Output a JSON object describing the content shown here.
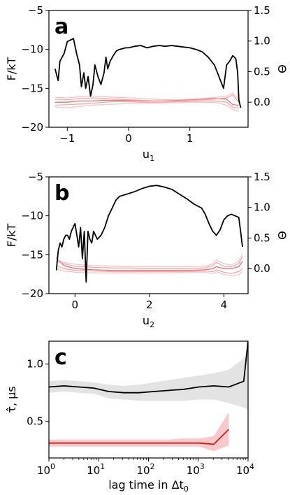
{
  "chart_data": [
    {
      "type": "line",
      "panel_label": "a",
      "xlabel": "u",
      "xlabel_sub": "1",
      "ylabel": "F/kT",
      "ylabel_right": "Θ",
      "xlim": [
        -1.3,
        1.95
      ],
      "ylim": [
        -20,
        -5
      ],
      "ylim_right": [
        -0.41,
        1.5
      ],
      "xticks": [
        -1,
        0,
        1
      ],
      "yticks": [
        -20,
        -15,
        -10,
        -5
      ],
      "yticks_right": [
        0.0,
        0.5,
        1.0,
        1.5
      ],
      "tick_labels_x": [
        "−1",
        "0",
        "1"
      ],
      "tick_labels_y": [
        "−20",
        "−15",
        "−10",
        "−5"
      ],
      "tick_labels_y_right": [
        "0.0",
        "0.5",
        "1.0",
        "1.5"
      ],
      "series": [
        {
          "axis": "left",
          "color": "#000000",
          "x": [
            -1.2,
            -1.15,
            -1.12,
            -1.05,
            -1.0,
            -0.95,
            -0.9,
            -0.85,
            -0.8,
            -0.77,
            -0.73,
            -0.7,
            -0.66,
            -0.62,
            -0.58,
            -0.55,
            -0.5,
            -0.45,
            -0.4,
            -0.37,
            -0.34,
            -0.3,
            -0.25,
            -0.2,
            -0.15,
            -0.1,
            -0.05,
            0.0,
            0.1,
            0.2,
            0.3,
            0.4,
            0.5,
            0.6,
            0.7,
            0.8,
            0.9,
            1.0,
            1.1,
            1.2,
            1.3,
            1.4,
            1.45,
            1.5,
            1.55,
            1.6,
            1.65,
            1.7,
            1.75,
            1.78,
            1.8,
            1.83
          ],
          "y": [
            -12.5,
            -14.0,
            -11.5,
            -10.5,
            -9.0,
            -8.8,
            -8.6,
            -10.5,
            -12.0,
            -14.8,
            -13.0,
            -15.0,
            -13.5,
            -16.0,
            -14.5,
            -12.0,
            -13.5,
            -14.5,
            -13.0,
            -11.0,
            -12.5,
            -11.5,
            -10.8,
            -10.2,
            -10.0,
            -9.9,
            -9.8,
            -9.8,
            -9.6,
            -9.5,
            -9.8,
            -9.6,
            -9.5,
            -9.6,
            -9.5,
            -9.6,
            -9.7,
            -9.8,
            -10.0,
            -10.3,
            -11.0,
            -12.0,
            -13.0,
            -14.0,
            -15.0,
            -12.0,
            -11.5,
            -10.8,
            -11.2,
            -13.0,
            -16.5,
            -17.5
          ]
        },
        {
          "axis": "right",
          "color": "#e0575a",
          "x": [
            -1.2,
            -1.0,
            -0.8,
            -0.6,
            -0.4,
            -0.2,
            0.0,
            0.2,
            0.4,
            0.6,
            0.8,
            1.0,
            1.2,
            1.4,
            1.6,
            1.7,
            1.8
          ],
          "y": [
            0.0,
            0.0,
            0.02,
            0.02,
            0.03,
            0.03,
            0.03,
            0.02,
            0.02,
            0.02,
            0.03,
            0.04,
            0.05,
            0.06,
            0.05,
            -0.04,
            -0.05
          ]
        },
        {
          "axis": "right",
          "color": "#f29a9c",
          "x": [
            -1.2,
            -1.0,
            -0.8,
            -0.6,
            -0.4,
            -0.2,
            0.0,
            0.2,
            0.4,
            0.6,
            0.8,
            1.0,
            1.2,
            1.4,
            1.6,
            1.7,
            1.8
          ],
          "y": [
            0.05,
            0.04,
            0.06,
            0.07,
            0.06,
            0.05,
            0.04,
            0.03,
            0.02,
            0.02,
            0.02,
            0.03,
            0.04,
            0.05,
            0.07,
            0.12,
            0.0
          ]
        },
        {
          "axis": "right",
          "color": "#f29a9c",
          "x": [
            -1.2,
            -1.0,
            -0.8,
            -0.6,
            -0.4,
            -0.2,
            0.0,
            0.2,
            0.4,
            0.6,
            0.8,
            1.0,
            1.2,
            1.4,
            1.6,
            1.7,
            1.8
          ],
          "y": [
            -0.05,
            -0.04,
            -0.03,
            -0.02,
            0.0,
            0.01,
            0.01,
            0.0,
            0.0,
            0.0,
            0.01,
            0.01,
            0.02,
            0.02,
            0.0,
            -0.08,
            -0.1
          ]
        },
        {
          "axis": "right",
          "color": "#f7bcbd",
          "x": [
            -1.2,
            -1.0,
            -0.8,
            -0.6,
            -0.4,
            -0.2,
            0.0,
            0.2,
            0.4,
            0.6,
            0.8,
            1.0,
            1.2,
            1.4,
            1.6,
            1.7,
            1.8
          ],
          "y": [
            0.08,
            0.07,
            0.09,
            0.1,
            0.09,
            0.08,
            0.07,
            0.06,
            0.05,
            0.04,
            0.04,
            0.05,
            0.06,
            0.08,
            0.1,
            0.15,
            0.05
          ]
        },
        {
          "axis": "right",
          "color": "#f7bcbd",
          "x": [
            -1.2,
            -1.0,
            -0.8,
            -0.6,
            -0.4,
            -0.2,
            0.0,
            0.2,
            0.4,
            0.6,
            0.8,
            1.0,
            1.2,
            1.4,
            1.6,
            1.7,
            1.8
          ],
          "y": [
            -0.08,
            -0.09,
            -0.07,
            -0.05,
            -0.04,
            -0.03,
            -0.02,
            -0.02,
            -0.02,
            -0.01,
            -0.01,
            0.0,
            0.0,
            0.0,
            -0.05,
            -0.12,
            -0.15
          ]
        }
      ]
    },
    {
      "type": "line",
      "panel_label": "b",
      "xlabel": "u",
      "xlabel_sub": "2",
      "ylabel": "F/kT",
      "ylabel_right": "Θ",
      "xlim": [
        -0.7,
        4.65
      ],
      "ylim": [
        -20,
        -5
      ],
      "ylim_right": [
        -0.41,
        1.5
      ],
      "xticks": [
        0,
        2,
        4
      ],
      "yticks": [
        -20,
        -15,
        -10,
        -5
      ],
      "yticks_right": [
        0.0,
        0.5,
        1.0,
        1.5
      ],
      "tick_labels_x": [
        "0",
        "2",
        "4"
      ],
      "tick_labels_y": [
        "−20",
        "−15",
        "−10",
        "−5"
      ],
      "tick_labels_y_right": [
        "0.0",
        "0.5",
        "1.0",
        "1.5"
      ],
      "series": [
        {
          "axis": "left",
          "color": "#000000",
          "x": [
            -0.5,
            -0.45,
            -0.4,
            -0.35,
            -0.3,
            -0.25,
            -0.2,
            -0.15,
            -0.1,
            -0.05,
            0.0,
            0.05,
            0.1,
            0.15,
            0.2,
            0.25,
            0.3,
            0.35,
            0.4,
            0.45,
            0.5,
            0.6,
            0.7,
            0.8,
            0.9,
            1.0,
            1.1,
            1.2,
            1.4,
            1.6,
            1.8,
            2.0,
            2.2,
            2.4,
            2.6,
            2.8,
            3.0,
            3.2,
            3.4,
            3.5,
            3.6,
            3.7,
            3.8,
            3.9,
            4.0,
            4.1,
            4.2,
            4.3,
            4.4,
            4.45,
            4.5
          ],
          "y": [
            -17.0,
            -14.5,
            -13.5,
            -14.0,
            -13.0,
            -12.5,
            -12.5,
            -13.0,
            -12.0,
            -11.5,
            -11.0,
            -12.5,
            -14.0,
            -11.5,
            -15.5,
            -12.0,
            -18.5,
            -12.0,
            -13.0,
            -13.5,
            -12.0,
            -13.0,
            -12.5,
            -11.5,
            -10.0,
            -9.0,
            -8.0,
            -7.5,
            -7.2,
            -6.9,
            -6.5,
            -6.2,
            -6.1,
            -6.3,
            -6.6,
            -7.2,
            -7.8,
            -8.5,
            -9.0,
            -9.8,
            -11.0,
            -12.0,
            -12.5,
            -11.8,
            -10.5,
            -10.0,
            -9.8,
            -10.0,
            -10.2,
            -12.0,
            -14.0
          ]
        },
        {
          "axis": "right",
          "color": "#e0575a",
          "x": [
            -0.5,
            -0.3,
            0.0,
            0.5,
            1.0,
            1.5,
            2.0,
            2.5,
            3.0,
            3.5,
            3.7,
            3.8,
            4.0,
            4.2,
            4.4,
            4.5
          ],
          "y": [
            0.18,
            0.05,
            0.0,
            -0.02,
            -0.03,
            -0.03,
            -0.03,
            -0.03,
            -0.03,
            -0.02,
            0.0,
            0.03,
            0.0,
            0.0,
            0.03,
            0.12
          ]
        },
        {
          "axis": "right",
          "color": "#f29a9c",
          "x": [
            -0.5,
            -0.3,
            0.0,
            0.5,
            1.0,
            1.5,
            2.0,
            2.5,
            3.0,
            3.5,
            3.7,
            3.8,
            4.0,
            4.2,
            4.4,
            4.5
          ],
          "y": [
            0.12,
            0.08,
            0.04,
            0.02,
            0.01,
            0.01,
            0.0,
            0.0,
            0.0,
            0.01,
            0.05,
            0.1,
            0.04,
            0.03,
            0.08,
            0.2
          ]
        },
        {
          "axis": "right",
          "color": "#f29a9c",
          "x": [
            -0.5,
            -0.3,
            0.0,
            0.5,
            1.0,
            1.5,
            2.0,
            2.5,
            3.0,
            3.5,
            3.7,
            3.8,
            4.0,
            4.2,
            4.4,
            4.5
          ],
          "y": [
            0.05,
            0.0,
            -0.03,
            -0.04,
            -0.05,
            -0.05,
            -0.05,
            -0.05,
            -0.05,
            -0.04,
            -0.05,
            -0.02,
            -0.06,
            -0.08,
            -0.05,
            0.0
          ]
        },
        {
          "axis": "right",
          "color": "#f7bcbd",
          "x": [
            -0.5,
            -0.3,
            0.0,
            0.5,
            1.0,
            1.5,
            2.0,
            2.5,
            3.0,
            3.5,
            3.7,
            3.8,
            4.0,
            4.2,
            4.4,
            4.5
          ],
          "y": [
            0.15,
            0.1,
            0.07,
            0.05,
            0.04,
            0.03,
            0.03,
            0.03,
            0.03,
            0.04,
            0.08,
            0.14,
            0.08,
            0.06,
            0.12,
            0.25
          ]
        },
        {
          "axis": "right",
          "color": "#f7bcbd",
          "x": [
            -0.5,
            -0.3,
            0.0,
            0.5,
            1.0,
            1.5,
            2.0,
            2.5,
            3.0,
            3.5,
            3.7,
            3.8,
            4.0,
            4.2,
            4.4,
            4.5
          ],
          "y": [
            0.0,
            -0.04,
            -0.06,
            -0.07,
            -0.07,
            -0.07,
            -0.07,
            -0.07,
            -0.06,
            -0.06,
            -0.08,
            -0.05,
            -0.1,
            -0.12,
            -0.1,
            -0.05
          ]
        }
      ]
    },
    {
      "type": "line",
      "panel_label": "c",
      "xlabel": "lag time in Δt",
      "xlabel_sub": "0",
      "ylabel": "τ̂, μs",
      "xscale": "log",
      "xlim": [
        1,
        10000
      ],
      "ylim": [
        0.18,
        1.2
      ],
      "xticks": [
        1,
        10,
        100,
        1000,
        10000
      ],
      "xtick_base": "10",
      "xtick_exponents": [
        "0",
        "1",
        "2",
        "3",
        "4"
      ],
      "yticks": [
        0.5,
        1.0
      ],
      "tick_labels_y": [
        "0.5",
        "1.0"
      ],
      "series": [
        {
          "color": "#000000",
          "band_color": "#d9d9d9",
          "x": [
            1,
            2,
            4,
            8,
            16,
            32,
            64,
            128,
            256,
            512,
            1024,
            2048,
            4096,
            8192,
            10000
          ],
          "y": [
            0.8,
            0.81,
            0.8,
            0.79,
            0.76,
            0.75,
            0.75,
            0.76,
            0.77,
            0.78,
            0.8,
            0.81,
            0.8,
            0.85,
            1.2
          ],
          "upper": [
            0.85,
            0.86,
            0.85,
            0.84,
            0.82,
            0.81,
            0.82,
            0.84,
            0.86,
            0.88,
            0.9,
            0.92,
            0.95,
            1.05,
            1.15
          ],
          "lower": [
            0.75,
            0.76,
            0.75,
            0.74,
            0.7,
            0.69,
            0.68,
            0.68,
            0.68,
            0.68,
            0.69,
            0.69,
            0.66,
            0.62,
            0.6
          ]
        },
        {
          "color": "#cc1f1f",
          "band_color": "#f7b6b6",
          "x": [
            1,
            2,
            4,
            8,
            16,
            32,
            64,
            128,
            256,
            512,
            1024,
            2048,
            4096
          ],
          "y": [
            0.31,
            0.31,
            0.31,
            0.31,
            0.31,
            0.31,
            0.31,
            0.31,
            0.31,
            0.31,
            0.31,
            0.3,
            0.43
          ],
          "upper": [
            0.34,
            0.34,
            0.34,
            0.34,
            0.34,
            0.34,
            0.34,
            0.34,
            0.34,
            0.35,
            0.35,
            0.37,
            0.58
          ],
          "lower": [
            0.28,
            0.28,
            0.28,
            0.28,
            0.28,
            0.28,
            0.28,
            0.28,
            0.28,
            0.28,
            0.28,
            0.24,
            0.29
          ]
        }
      ]
    }
  ]
}
